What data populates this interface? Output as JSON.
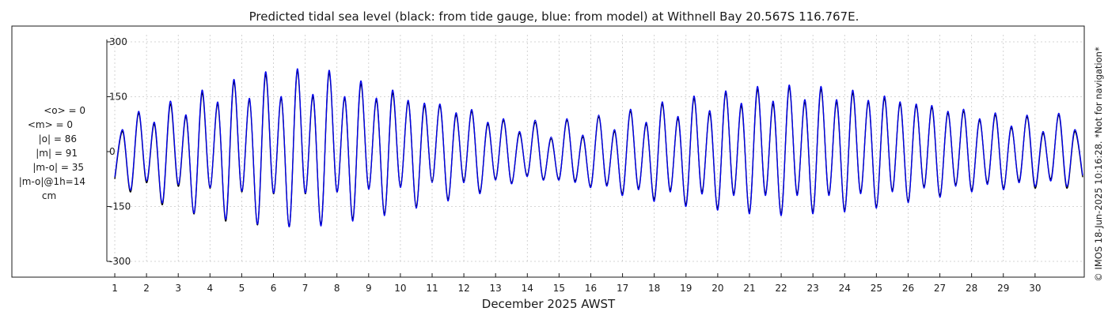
{
  "chart_data": {
    "type": "line",
    "title": "Predicted tidal sea level (black: from tide gauge, blue: from model) at Withnell Bay 20.567S 116.767E.",
    "xlabel": "December 2025 AWST",
    "ylabel": "",
    "x_ticks": [
      "1",
      "2",
      "3",
      "4",
      "5",
      "6",
      "7",
      "8",
      "9",
      "10",
      "11",
      "12",
      "13",
      "14",
      "15",
      "16",
      "17",
      "18",
      "19",
      "20",
      "21",
      "22",
      "23",
      "24",
      "25",
      "26",
      "27",
      "28",
      "29",
      "30"
    ],
    "y_ticks": [
      300,
      150,
      0,
      -150,
      -300
    ],
    "ylim": [
      -300,
      300
    ],
    "xlim_days": [
      0.75,
      31.55
    ],
    "grid": true,
    "stats": {
      "mean_obs": "<o> = 0",
      "mean_model": "<m> = 0",
      "abs_obs": "|o| = 86",
      "abs_model": "|m| = 91",
      "abs_diff": "|m-o| = 35",
      "abs_diff_1h": "|m-o|@1h=14",
      "unit": "cm"
    },
    "credit": "© IMOS 18-Jun-2025 10:16:28. *Not for navigation*",
    "series": [
      {
        "name": "tide gauge",
        "color": "#000000",
        "points": [
          {
            "x": 1.0,
            "y": -75
          },
          {
            "x": 1.25,
            "y": 55
          },
          {
            "x": 1.5,
            "y": -110
          },
          {
            "x": 1.75,
            "y": 105
          },
          {
            "x": 2.0,
            "y": -85
          },
          {
            "x": 2.25,
            "y": 75
          },
          {
            "x": 2.5,
            "y": -145
          },
          {
            "x": 2.75,
            "y": 130
          },
          {
            "x": 3.0,
            "y": -95
          },
          {
            "x": 3.25,
            "y": 95
          },
          {
            "x": 3.5,
            "y": -170
          },
          {
            "x": 3.75,
            "y": 160
          },
          {
            "x": 4.0,
            "y": -100
          },
          {
            "x": 4.25,
            "y": 130
          },
          {
            "x": 4.5,
            "y": -190
          },
          {
            "x": 4.75,
            "y": 190
          },
          {
            "x": 5.0,
            "y": -110
          },
          {
            "x": 5.25,
            "y": 140
          },
          {
            "x": 5.5,
            "y": -200
          },
          {
            "x": 5.75,
            "y": 210
          },
          {
            "x": 6.0,
            "y": -115
          },
          {
            "x": 6.25,
            "y": 145
          },
          {
            "x": 6.5,
            "y": -205
          },
          {
            "x": 6.75,
            "y": 220
          },
          {
            "x": 7.0,
            "y": -115
          },
          {
            "x": 7.25,
            "y": 150
          },
          {
            "x": 7.5,
            "y": -200
          },
          {
            "x": 7.75,
            "y": 215
          },
          {
            "x": 8.0,
            "y": -110
          },
          {
            "x": 8.25,
            "y": 145
          },
          {
            "x": 8.5,
            "y": -185
          },
          {
            "x": 8.75,
            "y": 185
          },
          {
            "x": 9.0,
            "y": -100
          },
          {
            "x": 9.25,
            "y": 140
          },
          {
            "x": 9.5,
            "y": -170
          },
          {
            "x": 9.75,
            "y": 160
          },
          {
            "x": 10.0,
            "y": -95
          },
          {
            "x": 10.25,
            "y": 135
          },
          {
            "x": 10.5,
            "y": -150
          },
          {
            "x": 10.75,
            "y": 125
          },
          {
            "x": 11.0,
            "y": -80
          },
          {
            "x": 11.25,
            "y": 125
          },
          {
            "x": 11.5,
            "y": -130
          },
          {
            "x": 11.75,
            "y": 100
          },
          {
            "x": 12.0,
            "y": -80
          },
          {
            "x": 12.25,
            "y": 110
          },
          {
            "x": 12.5,
            "y": -110
          },
          {
            "x": 12.75,
            "y": 75
          },
          {
            "x": 13.0,
            "y": -75
          },
          {
            "x": 13.25,
            "y": 85
          },
          {
            "x": 13.5,
            "y": -85
          },
          {
            "x": 13.75,
            "y": 50
          },
          {
            "x": 14.0,
            "y": -65
          },
          {
            "x": 14.25,
            "y": 80
          },
          {
            "x": 14.5,
            "y": -75
          },
          {
            "x": 14.75,
            "y": 35
          },
          {
            "x": 15.0,
            "y": -75
          },
          {
            "x": 15.25,
            "y": 85
          },
          {
            "x": 15.5,
            "y": -80
          },
          {
            "x": 15.75,
            "y": 40
          },
          {
            "x": 16.0,
            "y": -95
          },
          {
            "x": 16.25,
            "y": 95
          },
          {
            "x": 16.5,
            "y": -90
          },
          {
            "x": 16.75,
            "y": 55
          },
          {
            "x": 17.0,
            "y": -115
          },
          {
            "x": 17.25,
            "y": 110
          },
          {
            "x": 17.5,
            "y": -100
          },
          {
            "x": 17.75,
            "y": 75
          },
          {
            "x": 18.0,
            "y": -130
          },
          {
            "x": 18.25,
            "y": 130
          },
          {
            "x": 18.5,
            "y": -105
          },
          {
            "x": 18.75,
            "y": 90
          },
          {
            "x": 19.0,
            "y": -145
          },
          {
            "x": 19.25,
            "y": 145
          },
          {
            "x": 19.5,
            "y": -110
          },
          {
            "x": 19.75,
            "y": 105
          },
          {
            "x": 20.0,
            "y": -155
          },
          {
            "x": 20.25,
            "y": 160
          },
          {
            "x": 20.5,
            "y": -115
          },
          {
            "x": 20.75,
            "y": 125
          },
          {
            "x": 21.0,
            "y": -165
          },
          {
            "x": 21.25,
            "y": 170
          },
          {
            "x": 21.5,
            "y": -115
          },
          {
            "x": 21.75,
            "y": 130
          },
          {
            "x": 22.0,
            "y": -170
          },
          {
            "x": 22.25,
            "y": 175
          },
          {
            "x": 22.5,
            "y": -115
          },
          {
            "x": 22.75,
            "y": 135
          },
          {
            "x": 23.0,
            "y": -165
          },
          {
            "x": 23.25,
            "y": 170
          },
          {
            "x": 23.5,
            "y": -115
          },
          {
            "x": 23.75,
            "y": 135
          },
          {
            "x": 24.0,
            "y": -160
          },
          {
            "x": 24.25,
            "y": 160
          },
          {
            "x": 24.5,
            "y": -110
          },
          {
            "x": 24.75,
            "y": 135
          },
          {
            "x": 25.0,
            "y": -150
          },
          {
            "x": 25.25,
            "y": 145
          },
          {
            "x": 25.5,
            "y": -105
          },
          {
            "x": 25.75,
            "y": 130
          },
          {
            "x": 26.0,
            "y": -135
          },
          {
            "x": 26.25,
            "y": 125
          },
          {
            "x": 26.5,
            "y": -95
          },
          {
            "x": 26.75,
            "y": 120
          },
          {
            "x": 27.0,
            "y": -120
          },
          {
            "x": 27.25,
            "y": 105
          },
          {
            "x": 27.5,
            "y": -90
          },
          {
            "x": 27.75,
            "y": 110
          },
          {
            "x": 28.0,
            "y": -105
          },
          {
            "x": 28.25,
            "y": 85
          },
          {
            "x": 28.5,
            "y": -85
          },
          {
            "x": 28.75,
            "y": 100
          },
          {
            "x": 29.0,
            "y": -100
          },
          {
            "x": 29.25,
            "y": 65
          },
          {
            "x": 29.5,
            "y": -80
          },
          {
            "x": 29.75,
            "y": 95
          },
          {
            "x": 30.0,
            "y": -100
          },
          {
            "x": 30.25,
            "y": 50
          },
          {
            "x": 30.5,
            "y": -75
          },
          {
            "x": 30.75,
            "y": 100
          },
          {
            "x": 31.0,
            "y": -100
          },
          {
            "x": 31.25,
            "y": 55
          },
          {
            "x": 31.5,
            "y": -70
          }
        ]
      },
      {
        "name": "model",
        "color": "#0000ee",
        "points": [
          {
            "x": 1.0,
            "y": -70
          },
          {
            "x": 1.25,
            "y": 60
          },
          {
            "x": 1.5,
            "y": -105
          },
          {
            "x": 1.75,
            "y": 110
          },
          {
            "x": 2.0,
            "y": -80
          },
          {
            "x": 2.25,
            "y": 80
          },
          {
            "x": 2.5,
            "y": -140
          },
          {
            "x": 2.75,
            "y": 138
          },
          {
            "x": 3.0,
            "y": -90
          },
          {
            "x": 3.25,
            "y": 100
          },
          {
            "x": 3.5,
            "y": -168
          },
          {
            "x": 3.75,
            "y": 168
          },
          {
            "x": 4.0,
            "y": -98
          },
          {
            "x": 4.25,
            "y": 135
          },
          {
            "x": 4.5,
            "y": -185
          },
          {
            "x": 4.75,
            "y": 197
          },
          {
            "x": 5.0,
            "y": -108
          },
          {
            "x": 5.25,
            "y": 145
          },
          {
            "x": 5.5,
            "y": -198
          },
          {
            "x": 5.75,
            "y": 218
          },
          {
            "x": 6.0,
            "y": -113
          },
          {
            "x": 6.25,
            "y": 150
          },
          {
            "x": 6.5,
            "y": -205
          },
          {
            "x": 6.75,
            "y": 226
          },
          {
            "x": 7.0,
            "y": -113
          },
          {
            "x": 7.25,
            "y": 156
          },
          {
            "x": 7.5,
            "y": -203
          },
          {
            "x": 7.75,
            "y": 222
          },
          {
            "x": 8.0,
            "y": -110
          },
          {
            "x": 8.25,
            "y": 150
          },
          {
            "x": 8.5,
            "y": -190
          },
          {
            "x": 8.75,
            "y": 193
          },
          {
            "x": 9.0,
            "y": -103
          },
          {
            "x": 9.25,
            "y": 146
          },
          {
            "x": 9.5,
            "y": -175
          },
          {
            "x": 9.75,
            "y": 168
          },
          {
            "x": 10.0,
            "y": -98
          },
          {
            "x": 10.25,
            "y": 140
          },
          {
            "x": 10.5,
            "y": -155
          },
          {
            "x": 10.75,
            "y": 132
          },
          {
            "x": 11.0,
            "y": -85
          },
          {
            "x": 11.25,
            "y": 130
          },
          {
            "x": 11.5,
            "y": -135
          },
          {
            "x": 11.75,
            "y": 106
          },
          {
            "x": 12.0,
            "y": -85
          },
          {
            "x": 12.25,
            "y": 115
          },
          {
            "x": 12.5,
            "y": -115
          },
          {
            "x": 12.75,
            "y": 80
          },
          {
            "x": 13.0,
            "y": -78
          },
          {
            "x": 13.25,
            "y": 90
          },
          {
            "x": 13.5,
            "y": -88
          },
          {
            "x": 13.75,
            "y": 55
          },
          {
            "x": 14.0,
            "y": -68
          },
          {
            "x": 14.25,
            "y": 86
          },
          {
            "x": 14.5,
            "y": -78
          },
          {
            "x": 14.75,
            "y": 40
          },
          {
            "x": 15.0,
            "y": -78
          },
          {
            "x": 15.25,
            "y": 90
          },
          {
            "x": 15.5,
            "y": -84
          },
          {
            "x": 15.75,
            "y": 45
          },
          {
            "x": 16.0,
            "y": -98
          },
          {
            "x": 16.25,
            "y": 100
          },
          {
            "x": 16.5,
            "y": -94
          },
          {
            "x": 16.75,
            "y": 60
          },
          {
            "x": 17.0,
            "y": -120
          },
          {
            "x": 17.25,
            "y": 116
          },
          {
            "x": 17.5,
            "y": -104
          },
          {
            "x": 17.75,
            "y": 80
          },
          {
            "x": 18.0,
            "y": -136
          },
          {
            "x": 18.25,
            "y": 136
          },
          {
            "x": 18.5,
            "y": -110
          },
          {
            "x": 18.75,
            "y": 96
          },
          {
            "x": 19.0,
            "y": -150
          },
          {
            "x": 19.25,
            "y": 152
          },
          {
            "x": 19.5,
            "y": -116
          },
          {
            "x": 19.75,
            "y": 112
          },
          {
            "x": 20.0,
            "y": -160
          },
          {
            "x": 20.25,
            "y": 166
          },
          {
            "x": 20.5,
            "y": -120
          },
          {
            "x": 20.75,
            "y": 132
          },
          {
            "x": 21.0,
            "y": -170
          },
          {
            "x": 21.25,
            "y": 178
          },
          {
            "x": 21.5,
            "y": -120
          },
          {
            "x": 21.75,
            "y": 138
          },
          {
            "x": 22.0,
            "y": -175
          },
          {
            "x": 22.25,
            "y": 182
          },
          {
            "x": 22.5,
            "y": -120
          },
          {
            "x": 22.75,
            "y": 142
          },
          {
            "x": 23.0,
            "y": -170
          },
          {
            "x": 23.25,
            "y": 178
          },
          {
            "x": 23.5,
            "y": -120
          },
          {
            "x": 23.75,
            "y": 142
          },
          {
            "x": 24.0,
            "y": -165
          },
          {
            "x": 24.25,
            "y": 168
          },
          {
            "x": 24.5,
            "y": -115
          },
          {
            "x": 24.75,
            "y": 140
          },
          {
            "x": 25.0,
            "y": -155
          },
          {
            "x": 25.25,
            "y": 152
          },
          {
            "x": 25.5,
            "y": -110
          },
          {
            "x": 25.75,
            "y": 136
          },
          {
            "x": 26.0,
            "y": -140
          },
          {
            "x": 26.25,
            "y": 130
          },
          {
            "x": 26.5,
            "y": -100
          },
          {
            "x": 26.75,
            "y": 126
          },
          {
            "x": 27.0,
            "y": -125
          },
          {
            "x": 27.25,
            "y": 110
          },
          {
            "x": 27.5,
            "y": -95
          },
          {
            "x": 27.75,
            "y": 116
          },
          {
            "x": 28.0,
            "y": -110
          },
          {
            "x": 28.25,
            "y": 90
          },
          {
            "x": 28.5,
            "y": -90
          },
          {
            "x": 28.75,
            "y": 106
          },
          {
            "x": 29.0,
            "y": -104
          },
          {
            "x": 29.25,
            "y": 70
          },
          {
            "x": 29.5,
            "y": -85
          },
          {
            "x": 29.75,
            "y": 100
          },
          {
            "x": 30.0,
            "y": -95
          },
          {
            "x": 30.25,
            "y": 55
          },
          {
            "x": 30.5,
            "y": -80
          },
          {
            "x": 30.75,
            "y": 105
          },
          {
            "x": 31.0,
            "y": -95
          },
          {
            "x": 31.25,
            "y": 60
          },
          {
            "x": 31.5,
            "y": -65
          }
        ]
      }
    ]
  }
}
